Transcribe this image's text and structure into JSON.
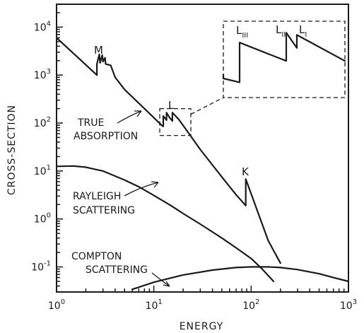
{
  "chart_data": {
    "type": "line",
    "xlabel": "ENERGY",
    "ylabel": "CROSS-SECTION",
    "xscale": "log",
    "yscale": "log",
    "xlim": [
      1,
      1000
    ],
    "ylim": [
      0.03,
      30000
    ],
    "grid": false,
    "x_tick_labels": [
      {
        "value": 1,
        "base": "10",
        "exp": "0"
      },
      {
        "value": 10,
        "base": "10",
        "exp": "1"
      },
      {
        "value": 100,
        "base": "10",
        "exp": "2"
      },
      {
        "value": 1000,
        "base": "10",
        "exp": "3"
      }
    ],
    "y_tick_labels": [
      {
        "value": 0.1,
        "base": "10",
        "exp": "-1"
      },
      {
        "value": 1,
        "base": "10",
        "exp": "0"
      },
      {
        "value": 10,
        "base": "10",
        "exp": "1"
      },
      {
        "value": 100,
        "base": "10",
        "exp": "2"
      },
      {
        "value": 1000,
        "base": "10",
        "exp": "3"
      },
      {
        "value": 10000,
        "base": "10",
        "exp": "4"
      }
    ],
    "series": [
      {
        "id": "true-absorption",
        "label_lines": [
          "TRUE",
          "ABSORPTION"
        ],
        "x": [
          1.0,
          2.6,
          2.6,
          2.75,
          2.8,
          2.95,
          3.0,
          3.15,
          3.2,
          3.6,
          4.0,
          5.0,
          8.0,
          12.0,
          12.5,
          12.5,
          13.5,
          13.5,
          14.5,
          15.5,
          15.5,
          18.0,
          22.0,
          30.0,
          50.0,
          70.0,
          88.0,
          88.0,
          150.0,
          200.0
        ],
        "y": [
          6000,
          1000,
          1700,
          2700,
          1800,
          2600,
          1900,
          2300,
          1700,
          1600,
          900,
          500,
          200,
          90,
          85,
          140,
          115,
          165,
          130,
          110,
          165,
          120,
          68,
          28,
          7.5,
          3.2,
          1.9,
          6.8,
          0.35,
          0.12
        ]
      },
      {
        "id": "rayleigh-scattering",
        "label_lines": [
          "RAYLEIGH",
          "SCATTERING"
        ],
        "x": [
          1,
          1.5,
          2,
          3,
          5,
          7,
          10,
          15,
          20,
          30,
          50,
          70,
          100,
          130,
          170
        ],
        "y": [
          12.5,
          12.7,
          12,
          10,
          6.5,
          4.7,
          3.1,
          1.9,
          1.3,
          0.78,
          0.4,
          0.25,
          0.15,
          0.09,
          0.05
        ]
      },
      {
        "id": "compton-scattering",
        "label_lines": [
          "COMPTON",
          "SCATTERING"
        ],
        "x": [
          6,
          10,
          20,
          40,
          70,
          100,
          150,
          200,
          300,
          500,
          700,
          1000
        ],
        "y": [
          0.034,
          0.048,
          0.068,
          0.086,
          0.097,
          0.1,
          0.1,
          0.097,
          0.088,
          0.072,
          0.06,
          0.05
        ]
      }
    ],
    "inset": {
      "label_L_III": {
        "base": "L",
        "sub": "III"
      },
      "label_L_II": {
        "base": "L",
        "sub": "II"
      },
      "label_L_I": {
        "base": "L",
        "sub": "I"
      },
      "edge_levels": [
        0.72,
        0.85,
        0.82
      ],
      "region_xlim": [
        11.5,
        24
      ],
      "region_ylim": [
        55,
        200
      ]
    },
    "annotations": {
      "M": "M",
      "L": "L",
      "K": "K"
    }
  }
}
